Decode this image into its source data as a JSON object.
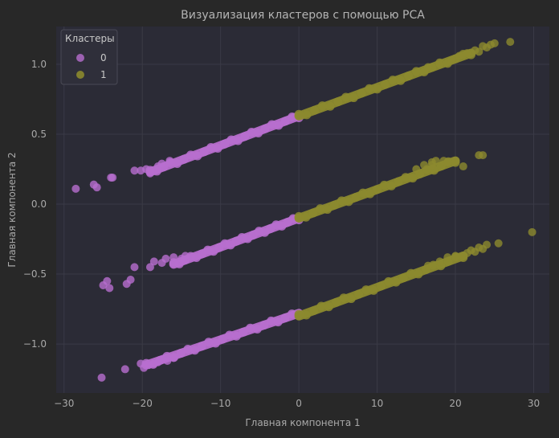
{
  "chart_data": {
    "type": "scatter",
    "title": "Визуализация кластеров с помощью PCA",
    "xlabel": "Главная компонента 1",
    "ylabel": "Главная компонента 2",
    "xlim": [
      -31,
      32
    ],
    "ylim": [
      -1.35,
      1.27
    ],
    "xticks": [
      -30,
      -20,
      -10,
      0,
      10,
      20,
      30
    ],
    "xtick_labels": [
      "−30",
      "−20",
      "−10",
      "0",
      "10",
      "20",
      "30"
    ],
    "yticks": [
      -1.0,
      -0.5,
      0.0,
      0.5,
      1.0
    ],
    "ytick_labels": [
      "−1.0",
      "−0.5",
      "0.0",
      "0.5",
      "1.0"
    ],
    "grid": true,
    "legend": {
      "title": "Кластеры",
      "placement": "top-left",
      "entries": [
        "0",
        "1"
      ]
    },
    "colors": {
      "background": "#282828",
      "plot_area": "#2b2b36",
      "grid": "#3a3a46",
      "cluster_0": "#b86ecf",
      "cluster_1": "#8c8a2e"
    },
    "series": [
      {
        "name": "0",
        "description_lines": [
          {
            "x_start": -19.0,
            "x_end": 0.0,
            "y_start": 0.23,
            "y_end": 0.63
          },
          {
            "x_start": -16.0,
            "x_end": 0.0,
            "y_start": -0.43,
            "y_end": -0.1
          },
          {
            "x_start": -19.5,
            "x_end": 0.0,
            "y_start": -1.15,
            "y_end": -0.78
          }
        ],
        "points": [
          [
            -28.5,
            0.11
          ],
          [
            -26.2,
            0.14
          ],
          [
            -25.8,
            0.12
          ],
          [
            -24.0,
            0.19
          ],
          [
            -23.8,
            0.19
          ],
          [
            -21.0,
            0.24
          ],
          [
            -20.2,
            0.24
          ],
          [
            -19.5,
            0.25
          ],
          [
            -19.0,
            0.22
          ],
          [
            -18.0,
            0.27
          ],
          [
            -17.5,
            0.29
          ],
          [
            -16.5,
            0.31
          ],
          [
            -25.0,
            -0.58
          ],
          [
            -24.5,
            -0.55
          ],
          [
            -24.2,
            -0.6
          ],
          [
            -22.0,
            -0.57
          ],
          [
            -21.5,
            -0.54
          ],
          [
            -21.0,
            -0.45
          ],
          [
            -19.0,
            -0.45
          ],
          [
            -18.5,
            -0.41
          ],
          [
            -17.5,
            -0.42
          ],
          [
            -17.0,
            -0.39
          ],
          [
            -16.0,
            -0.38
          ],
          [
            -15.0,
            -0.39
          ],
          [
            -14.5,
            -0.37
          ],
          [
            -25.2,
            -1.24
          ],
          [
            -22.2,
            -1.18
          ],
          [
            -20.2,
            -1.14
          ],
          [
            -19.8,
            -1.17
          ],
          [
            -19.2,
            -1.15
          ],
          [
            -18.5,
            -1.14
          ],
          [
            -18.0,
            -1.13
          ],
          [
            -17.5,
            -1.11
          ],
          [
            -16.8,
            -1.12
          ],
          [
            -16.0,
            -1.1
          ]
        ]
      },
      {
        "name": "1",
        "description_lines": [
          {
            "x_start": 0.0,
            "x_end": 22.0,
            "y_start": 0.63,
            "y_end": 1.08
          },
          {
            "x_start": 0.0,
            "x_end": 20.0,
            "y_start": -0.1,
            "y_end": 0.31
          },
          {
            "x_start": 0.0,
            "x_end": 21.0,
            "y_start": -0.8,
            "y_end": -0.37
          }
        ],
        "points": [
          [
            20.5,
            1.06
          ],
          [
            21.5,
            1.08
          ],
          [
            22.5,
            1.1
          ],
          [
            23.0,
            1.09
          ],
          [
            23.5,
            1.13
          ],
          [
            24.0,
            1.12
          ],
          [
            24.5,
            1.14
          ],
          [
            25.0,
            1.15
          ],
          [
            27.0,
            1.16
          ],
          [
            19.5,
            1.03
          ],
          [
            18.0,
            1.0
          ],
          [
            16.5,
            0.98
          ],
          [
            16.0,
            0.28
          ],
          [
            17.0,
            0.3
          ],
          [
            17.5,
            0.31
          ],
          [
            18.5,
            0.31
          ],
          [
            19.0,
            0.3
          ],
          [
            20.0,
            0.31
          ],
          [
            21.0,
            0.27
          ],
          [
            23.0,
            0.35
          ],
          [
            23.5,
            0.35
          ],
          [
            17.0,
            0.28
          ],
          [
            15.0,
            0.25
          ],
          [
            19.0,
            -0.38
          ],
          [
            20.0,
            -0.37
          ],
          [
            21.0,
            -0.37
          ],
          [
            22.0,
            -0.33
          ],
          [
            23.0,
            -0.31
          ],
          [
            24.0,
            -0.29
          ],
          [
            25.5,
            -0.28
          ],
          [
            29.8,
            -0.2
          ],
          [
            23.5,
            -0.32
          ],
          [
            22.5,
            -0.34
          ],
          [
            21.5,
            -0.35
          ],
          [
            18.0,
            -0.41
          ],
          [
            16.5,
            -0.44
          ]
        ]
      }
    ]
  }
}
